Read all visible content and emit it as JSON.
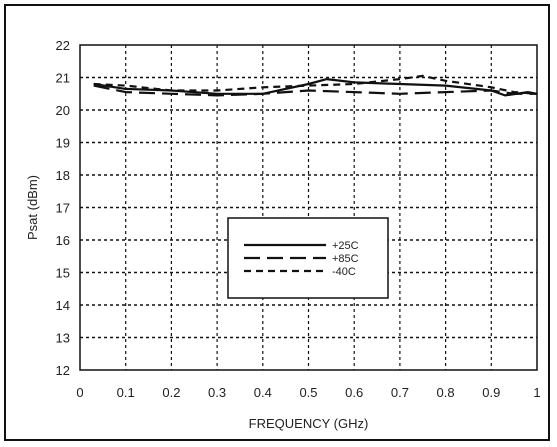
{
  "chart_data": {
    "type": "line",
    "title": "",
    "xlabel": "FREQUENCY (GHz)",
    "ylabel": "Psat (dBm)",
    "xlim": [
      0,
      1
    ],
    "ylim": [
      12,
      22
    ],
    "x_ticks": [
      "0",
      "0.1",
      "0.2",
      "0.3",
      "0.4",
      "0.5",
      "0.6",
      "0.7",
      "0.8",
      "0.9",
      "1"
    ],
    "y_ticks": [
      "12",
      "13",
      "14",
      "15",
      "16",
      "17",
      "18",
      "19",
      "20",
      "21",
      "22"
    ],
    "grid": true,
    "legend_position": "center-left",
    "series": [
      {
        "name": "+25C",
        "style": "solid",
        "x": [
          0.03,
          0.1,
          0.2,
          0.3,
          0.4,
          0.5,
          0.54,
          0.6,
          0.7,
          0.8,
          0.9,
          0.93,
          0.98,
          1.0
        ],
        "y": [
          20.8,
          20.65,
          20.6,
          20.5,
          20.5,
          20.8,
          20.95,
          20.85,
          20.8,
          20.75,
          20.6,
          20.45,
          20.55,
          20.5
        ]
      },
      {
        "name": "+85C",
        "style": "long-dash",
        "x": [
          0.03,
          0.1,
          0.2,
          0.3,
          0.4,
          0.5,
          0.6,
          0.7,
          0.8,
          0.9,
          0.95,
          1.0
        ],
        "y": [
          20.75,
          20.55,
          20.5,
          20.45,
          20.5,
          20.6,
          20.55,
          20.5,
          20.55,
          20.6,
          20.5,
          20.5
        ]
      },
      {
        "name": "-40C",
        "style": "short-dash",
        "x": [
          0.03,
          0.1,
          0.2,
          0.3,
          0.4,
          0.5,
          0.6,
          0.7,
          0.75,
          0.8,
          0.9,
          0.95,
          1.0
        ],
        "y": [
          20.8,
          20.75,
          20.6,
          20.6,
          20.7,
          20.75,
          20.8,
          20.95,
          21.05,
          20.9,
          20.7,
          20.55,
          20.5
        ]
      }
    ]
  }
}
